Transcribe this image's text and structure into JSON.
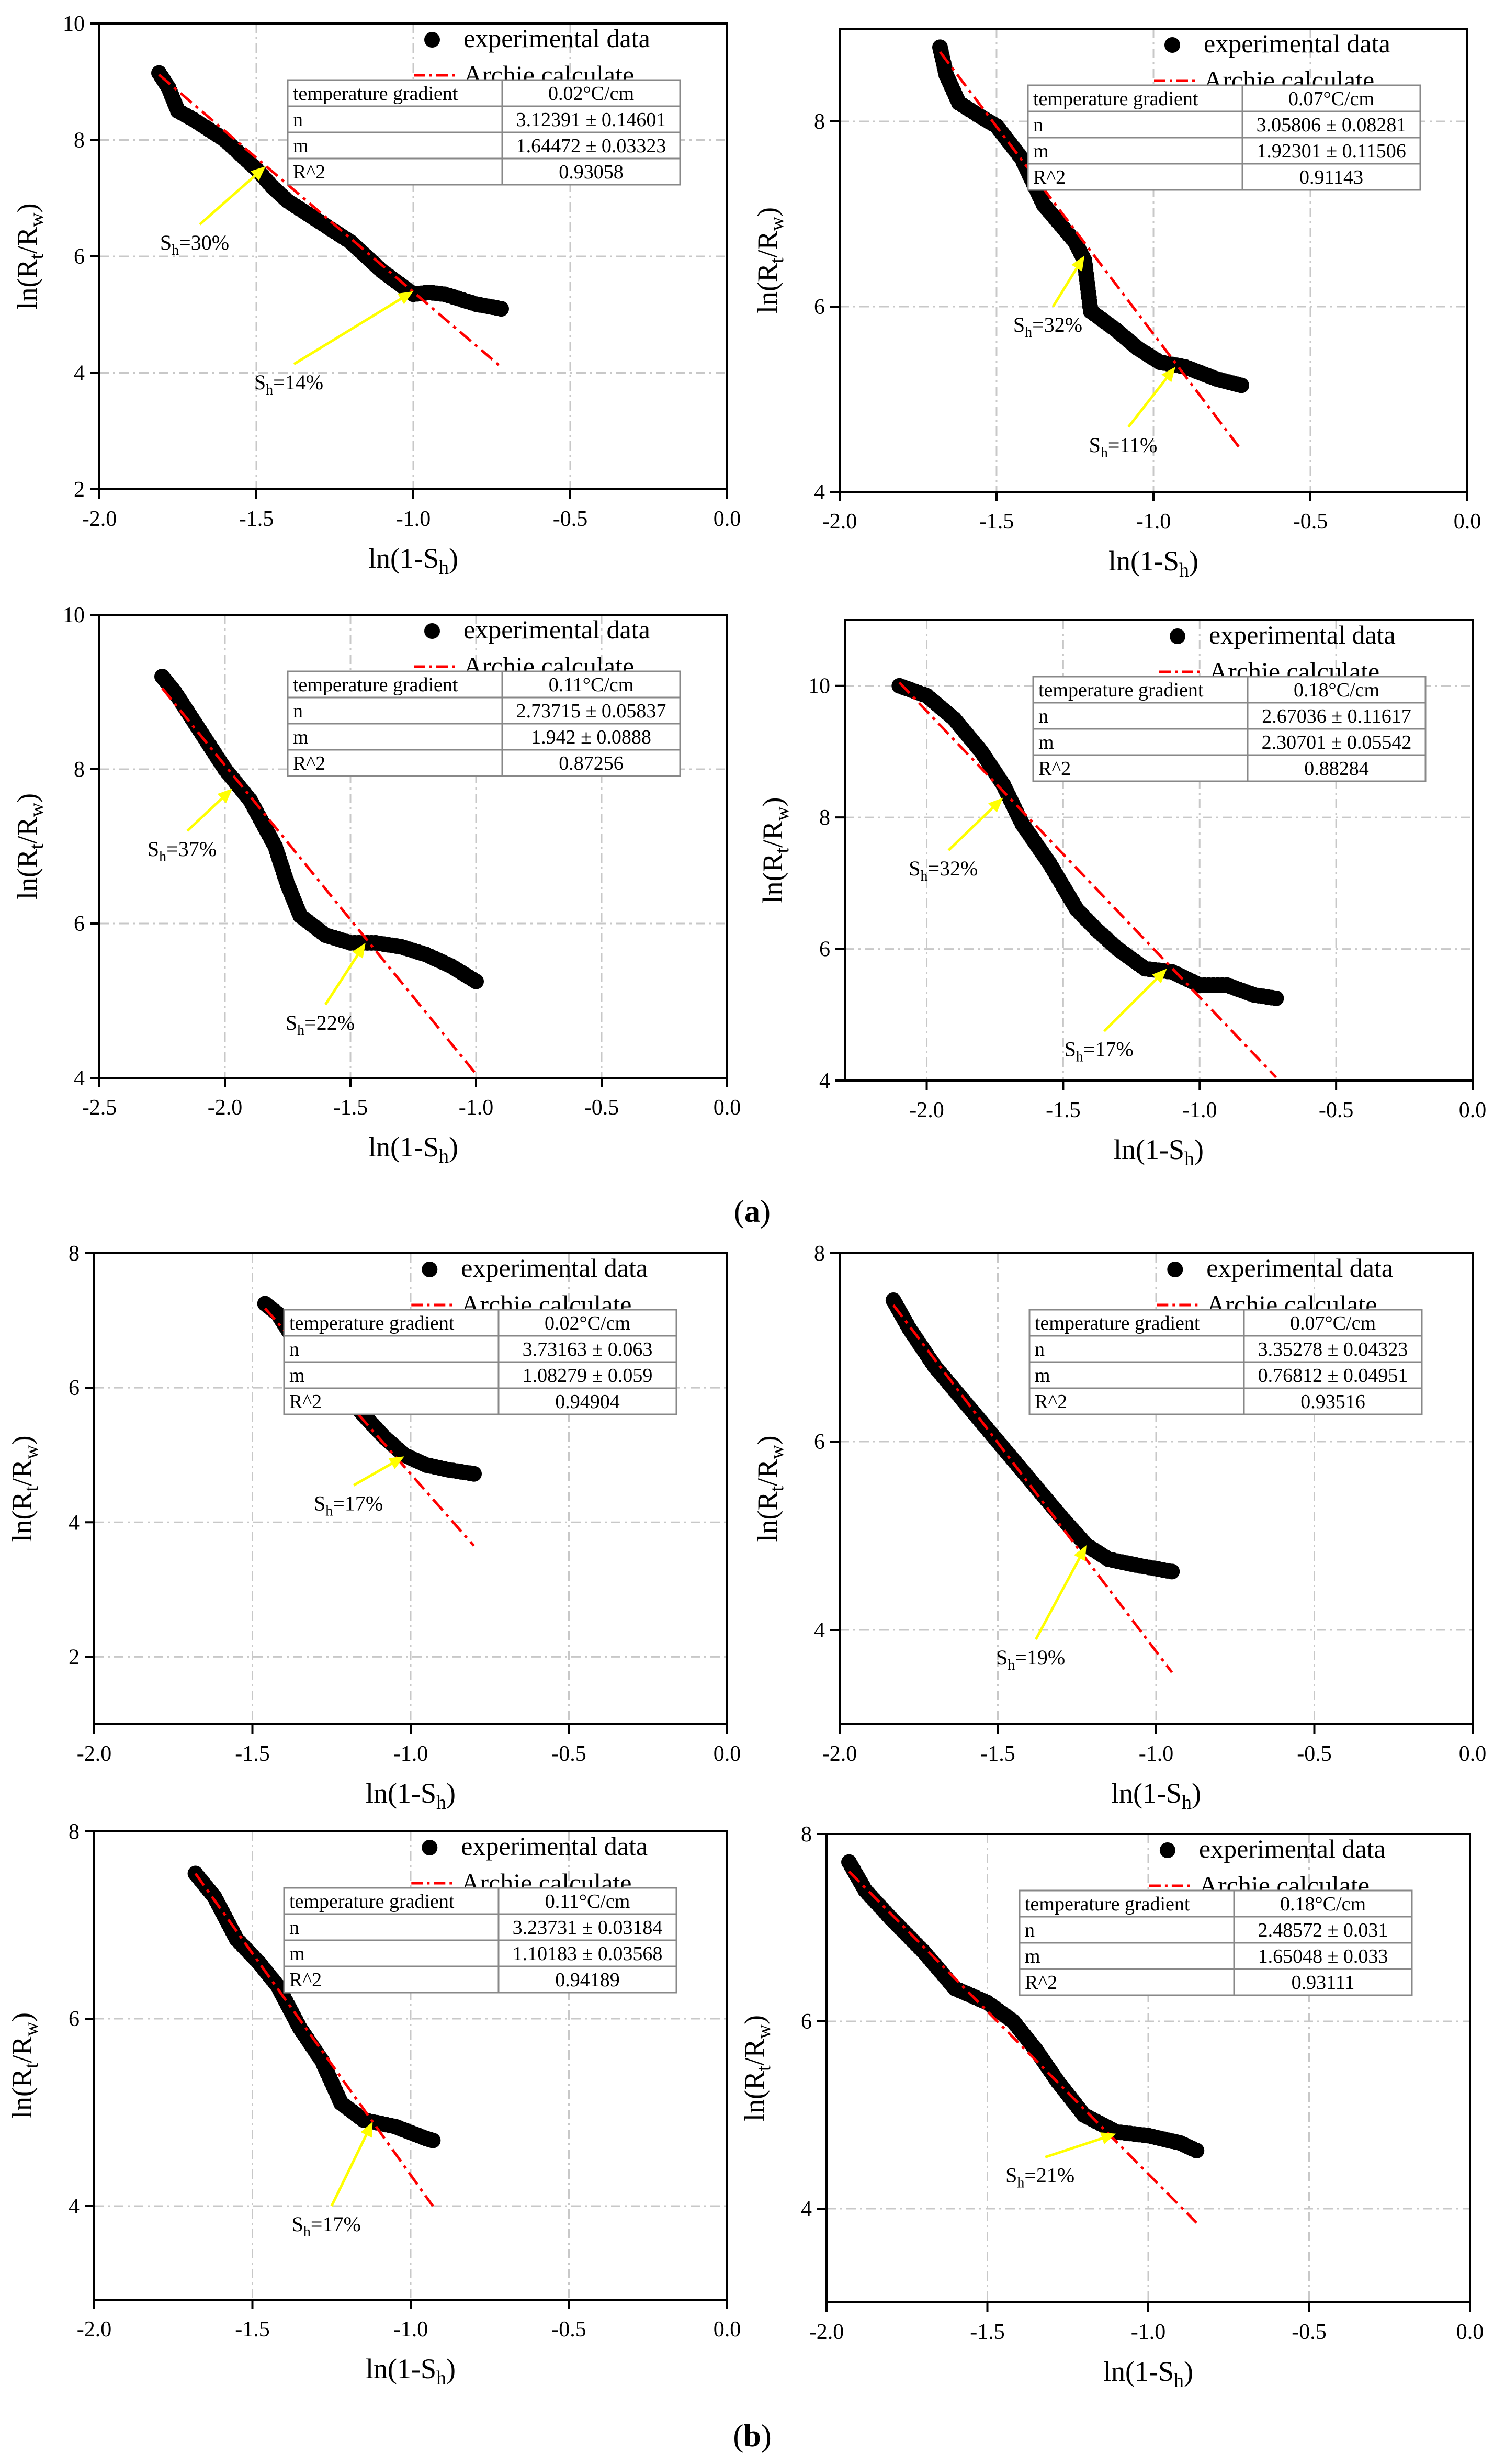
{
  "figure": {
    "section_labels": [
      "a",
      "b"
    ],
    "legend": {
      "experimental": "experimental data",
      "archie": "Archie calculate"
    },
    "axis_labels": {
      "xlabel_main": "ln(1-S",
      "xlabel_sub": "h",
      "ylabel_main": "ln(R",
      "ylabel_sub1": "t",
      "ylabel_mid": "/R",
      "ylabel_sub2": "w"
    },
    "annotation_prefix": "S",
    "annotation_sub": "h",
    "table_labels": [
      "temperature gradient",
      "n",
      "m",
      "R^2"
    ],
    "colors": {
      "data": "#000000",
      "fit": "#ff0000",
      "arrow": "#ffff00",
      "grid": "#c8c8c8"
    }
  },
  "chart_data": [
    {
      "type": "scatter",
      "section": "a",
      "temperature_gradient": "0.02°C/cm",
      "n": "3.12391 ± 0.14601",
      "m": "1.64472 ± 0.03323",
      "r2": "0.93058",
      "xlim": [
        -2.0,
        0.0
      ],
      "ylim": [
        2,
        10
      ],
      "xticks": [
        -2.0,
        -1.5,
        -1.0,
        -0.5,
        0.0
      ],
      "yticks": [
        2,
        4,
        6,
        8,
        10
      ],
      "data_points": [
        [
          -1.81,
          9.15
        ],
        [
          -1.78,
          8.9
        ],
        [
          -1.75,
          8.5
        ],
        [
          -1.7,
          8.35
        ],
        [
          -1.6,
          8.0
        ],
        [
          -1.5,
          7.5
        ],
        [
          -1.45,
          7.2
        ],
        [
          -1.4,
          6.95
        ],
        [
          -1.3,
          6.6
        ],
        [
          -1.2,
          6.25
        ],
        [
          -1.1,
          5.75
        ],
        [
          -1.0,
          5.35
        ],
        [
          -0.95,
          5.38
        ],
        [
          -0.9,
          5.35
        ],
        [
          -0.8,
          5.18
        ],
        [
          -0.72,
          5.1
        ]
      ],
      "fit_line": [
        [
          -1.81,
          9.12
        ],
        [
          -0.72,
          4.1
        ]
      ],
      "annotations": [
        {
          "label": "=30%",
          "x": -1.47,
          "y": 7.55,
          "anchor_x": -1.68,
          "anchor_y": 6.55
        },
        {
          "label": "=14%",
          "x": -1.0,
          "y": 5.4,
          "anchor_x": -1.38,
          "anchor_y": 4.15
        }
      ]
    },
    {
      "type": "scatter",
      "section": "a",
      "temperature_gradient": "0.07°C/cm",
      "n": "3.05806 ± 0.08281",
      "m": "1.92301 ± 0.11506",
      "r2": "0.91143",
      "xlim": [
        -2.0,
        0.0
      ],
      "ylim": [
        4,
        9
      ],
      "xticks": [
        -2.0,
        -1.5,
        -1.0,
        -0.5,
        0.0
      ],
      "yticks": [
        4,
        6,
        8
      ],
      "data_points": [
        [
          -1.68,
          8.8
        ],
        [
          -1.66,
          8.5
        ],
        [
          -1.62,
          8.2
        ],
        [
          -1.55,
          8.05
        ],
        [
          -1.5,
          7.95
        ],
        [
          -1.42,
          7.6
        ],
        [
          -1.35,
          7.1
        ],
        [
          -1.25,
          6.7
        ],
        [
          -1.22,
          6.5
        ],
        [
          -1.2,
          5.95
        ],
        [
          -1.12,
          5.75
        ],
        [
          -1.05,
          5.55
        ],
        [
          -0.98,
          5.4
        ],
        [
          -0.9,
          5.35
        ],
        [
          -0.8,
          5.22
        ],
        [
          -0.72,
          5.15
        ]
      ],
      "fit_line": [
        [
          -1.68,
          8.75
        ],
        [
          -0.72,
          4.45
        ]
      ],
      "annotations": [
        {
          "label": "=32%",
          "x": -1.22,
          "y": 6.55,
          "anchor_x": -1.32,
          "anchor_y": 6.0
        },
        {
          "label": "=11%",
          "x": -0.93,
          "y": 5.35,
          "anchor_x": -1.08,
          "anchor_y": 4.7
        }
      ]
    },
    {
      "type": "scatter",
      "section": "a",
      "temperature_gradient": "0.11°C/cm",
      "n": "2.73715 ± 0.05837",
      "m": "1.942 ± 0.0888",
      "r2": "0.87256",
      "xlim": [
        -2.5,
        0.0
      ],
      "ylim": [
        4,
        10
      ],
      "xticks": [
        -2.5,
        -2.0,
        -1.5,
        -1.0,
        -0.5,
        0.0
      ],
      "yticks": [
        4,
        6,
        8,
        10
      ],
      "data_points": [
        [
          -2.25,
          9.2
        ],
        [
          -2.2,
          9.0
        ],
        [
          -2.1,
          8.5
        ],
        [
          -2.0,
          8.0
        ],
        [
          -1.9,
          7.6
        ],
        [
          -1.8,
          7.0
        ],
        [
          -1.75,
          6.5
        ],
        [
          -1.7,
          6.1
        ],
        [
          -1.6,
          5.85
        ],
        [
          -1.5,
          5.75
        ],
        [
          -1.4,
          5.75
        ],
        [
          -1.3,
          5.7
        ],
        [
          -1.2,
          5.6
        ],
        [
          -1.1,
          5.45
        ],
        [
          -1.0,
          5.25
        ]
      ],
      "fit_line": [
        [
          -2.25,
          9.05
        ],
        [
          -1.0,
          4.05
        ]
      ],
      "annotations": [
        {
          "label": "=37%",
          "x": -1.97,
          "y": 7.75,
          "anchor_x": -2.15,
          "anchor_y": 7.2
        },
        {
          "label": "=22%",
          "x": -1.44,
          "y": 5.75,
          "anchor_x": -1.6,
          "anchor_y": 4.95
        }
      ]
    },
    {
      "type": "scatter",
      "section": "a",
      "temperature_gradient": "0.18°C/cm",
      "n": "2.67036 ± 0.11617",
      "m": "2.30701 ± 0.05542",
      "r2": "0.88284",
      "xlim": [
        -2.3,
        0.0
      ],
      "ylim": [
        4,
        11
      ],
      "xticks": [
        -2.0,
        -1.5,
        -1.0,
        -0.5,
        0.0
      ],
      "yticks": [
        4,
        6,
        8,
        10
      ],
      "data_points": [
        [
          -2.1,
          10.0
        ],
        [
          -2.0,
          9.85
        ],
        [
          -1.9,
          9.5
        ],
        [
          -1.8,
          9.0
        ],
        [
          -1.72,
          8.5
        ],
        [
          -1.65,
          7.9
        ],
        [
          -1.55,
          7.3
        ],
        [
          -1.45,
          6.6
        ],
        [
          -1.38,
          6.3
        ],
        [
          -1.3,
          6.0
        ],
        [
          -1.2,
          5.7
        ],
        [
          -1.1,
          5.65
        ],
        [
          -1.0,
          5.45
        ],
        [
          -0.9,
          5.45
        ],
        [
          -0.8,
          5.3
        ],
        [
          -0.72,
          5.25
        ]
      ],
      "fit_line": [
        [
          -2.1,
          10.05
        ],
        [
          -0.72,
          4.05
        ]
      ],
      "annotations": [
        {
          "label": "=32%",
          "x": -1.72,
          "y": 8.3,
          "anchor_x": -1.92,
          "anchor_y": 7.5
        },
        {
          "label": "=17%",
          "x": -1.12,
          "y": 5.7,
          "anchor_x": -1.35,
          "anchor_y": 4.75
        }
      ]
    },
    {
      "type": "scatter",
      "section": "b",
      "temperature_gradient": "0.02°C/cm",
      "n": "3.73163 ± 0.063",
      "m": "1.08279 ± 0.059",
      "r2": "0.94904",
      "xlim": [
        -2.0,
        0.0
      ],
      "ylim": [
        1,
        8
      ],
      "xticks": [
        -2.0,
        -1.5,
        -1.0,
        -0.5,
        0.0
      ],
      "yticks": [
        2,
        4,
        6,
        8
      ],
      "data_points": [
        [
          -1.46,
          7.25
        ],
        [
          -1.42,
          7.1
        ],
        [
          -1.38,
          6.8
        ],
        [
          -1.3,
          6.4
        ],
        [
          -1.22,
          6.0
        ],
        [
          -1.15,
          5.6
        ],
        [
          -1.08,
          5.25
        ],
        [
          -1.02,
          5.0
        ],
        [
          -0.95,
          4.85
        ],
        [
          -0.88,
          4.78
        ],
        [
          -0.8,
          4.72
        ]
      ],
      "fit_line": [
        [
          -1.46,
          7.18
        ],
        [
          -0.8,
          3.65
        ]
      ],
      "annotations": [
        {
          "label": "=17%",
          "x": -1.02,
          "y": 4.98,
          "anchor_x": -1.18,
          "anchor_y": 4.55
        }
      ]
    },
    {
      "type": "scatter",
      "section": "b",
      "temperature_gradient": "0.07°C/cm",
      "n": "3.35278 ± 0.04323",
      "m": "0.76812 ± 0.04951",
      "r2": "0.93516",
      "xlim": [
        -2.0,
        0.0
      ],
      "ylim": [
        3,
        8
      ],
      "xticks": [
        -2.0,
        -1.5,
        -1.0,
        -0.5,
        0.0
      ],
      "yticks": [
        4,
        6,
        8
      ],
      "data_points": [
        [
          -1.83,
          7.5
        ],
        [
          -1.78,
          7.2
        ],
        [
          -1.7,
          6.8
        ],
        [
          -1.6,
          6.4
        ],
        [
          -1.5,
          6.0
        ],
        [
          -1.4,
          5.6
        ],
        [
          -1.3,
          5.2
        ],
        [
          -1.22,
          4.9
        ],
        [
          -1.15,
          4.75
        ],
        [
          -1.05,
          4.68
        ],
        [
          -0.95,
          4.62
        ]
      ],
      "fit_line": [
        [
          -1.83,
          7.45
        ],
        [
          -0.95,
          3.55
        ]
      ],
      "annotations": [
        {
          "label": "=19%",
          "x": -1.22,
          "y": 4.9,
          "anchor_x": -1.38,
          "anchor_y": 3.9
        }
      ]
    },
    {
      "type": "scatter",
      "section": "b",
      "temperature_gradient": "0.11°C/cm",
      "n": "3.23731 ± 0.03184",
      "m": "1.10183 ± 0.03568",
      "r2": "0.94189",
      "xlim": [
        -2.0,
        0.0
      ],
      "ylim": [
        3,
        8
      ],
      "xticks": [
        -2.0,
        -1.5,
        -1.0,
        -0.5,
        0.0
      ],
      "yticks": [
        4,
        6,
        8
      ],
      "data_points": [
        [
          -1.68,
          7.55
        ],
        [
          -1.62,
          7.3
        ],
        [
          -1.55,
          6.85
        ],
        [
          -1.48,
          6.6
        ],
        [
          -1.42,
          6.35
        ],
        [
          -1.35,
          5.9
        ],
        [
          -1.28,
          5.55
        ],
        [
          -1.22,
          5.1
        ],
        [
          -1.15,
          4.92
        ],
        [
          -1.05,
          4.85
        ],
        [
          -0.95,
          4.72
        ],
        [
          -0.93,
          4.7
        ]
      ],
      "fit_line": [
        [
          -1.68,
          7.55
        ],
        [
          -0.93,
          4.0
        ]
      ],
      "annotations": [
        {
          "label": "=17%",
          "x": -1.12,
          "y": 4.9,
          "anchor_x": -1.25,
          "anchor_y": 4.0
        }
      ]
    },
    {
      "type": "scatter",
      "section": "b",
      "temperature_gradient": "0.18°C/cm",
      "n": "2.48572 ± 0.031",
      "m": "1.65048 ± 0.033",
      "r2": "0.93111",
      "xlim": [
        -2.0,
        0.0
      ],
      "ylim": [
        3,
        8
      ],
      "xticks": [
        -2.0,
        -1.5,
        -1.0,
        -0.5,
        0.0
      ],
      "yticks": [
        4,
        6,
        8
      ],
      "data_points": [
        [
          -1.93,
          7.7
        ],
        [
          -1.88,
          7.4
        ],
        [
          -1.8,
          7.1
        ],
        [
          -1.7,
          6.75
        ],
        [
          -1.6,
          6.35
        ],
        [
          -1.5,
          6.2
        ],
        [
          -1.42,
          6.0
        ],
        [
          -1.35,
          5.7
        ],
        [
          -1.28,
          5.35
        ],
        [
          -1.2,
          5.0
        ],
        [
          -1.1,
          4.82
        ],
        [
          -1.0,
          4.78
        ],
        [
          -0.9,
          4.7
        ],
        [
          -0.85,
          4.62
        ]
      ],
      "fit_line": [
        [
          -1.93,
          7.6
        ],
        [
          -0.85,
          3.85
        ]
      ],
      "annotations": [
        {
          "label": "=21%",
          "x": -1.1,
          "y": 4.8,
          "anchor_x": -1.32,
          "anchor_y": 4.55
        }
      ]
    }
  ]
}
